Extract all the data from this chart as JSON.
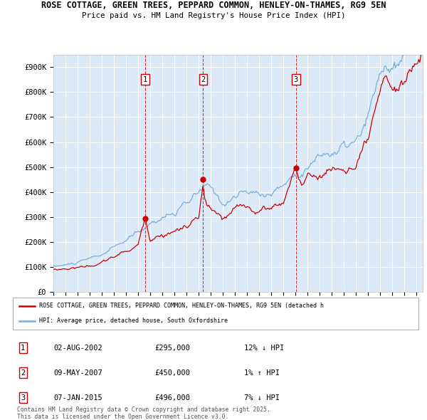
{
  "title_line1": "ROSE COTTAGE, GREEN TREES, PEPPARD COMMON, HENLEY-ON-THAMES, RG9 5EN",
  "title_line2": "Price paid vs. HM Land Registry's House Price Index (HPI)",
  "background_color": "#ffffff",
  "plot_bg_color": "#dce9f7",
  "grid_color": "#ffffff",
  "red_line_color": "#cc0000",
  "blue_line_color": "#7aaddb",
  "sale_marker_color": "#cc0000",
  "vline_color": "#cc0000",
  "ylim_min": 0,
  "ylim_max": 950000,
  "yticks": [
    0,
    100000,
    200000,
    300000,
    400000,
    500000,
    600000,
    700000,
    800000,
    900000
  ],
  "ytick_labels": [
    "£0",
    "£100K",
    "£200K",
    "£300K",
    "£400K",
    "£500K",
    "£600K",
    "£700K",
    "£800K",
    "£900K"
  ],
  "xmin": 1995.0,
  "xmax": 2025.5,
  "xticks": [
    1995,
    1996,
    1997,
    1998,
    1999,
    2000,
    2001,
    2002,
    2003,
    2004,
    2005,
    2006,
    2007,
    2008,
    2009,
    2010,
    2011,
    2012,
    2013,
    2014,
    2015,
    2016,
    2017,
    2018,
    2019,
    2020,
    2021,
    2022,
    2023,
    2024,
    2025
  ],
  "sales": [
    {
      "num": 1,
      "date": "02-AUG-2002",
      "price": 295000,
      "year": 2002.58,
      "pct": "12%",
      "dir": "↓"
    },
    {
      "num": 2,
      "date": "09-MAY-2007",
      "price": 450000,
      "year": 2007.36,
      "pct": "1%",
      "dir": "↑"
    },
    {
      "num": 3,
      "date": "07-JAN-2015",
      "price": 496000,
      "year": 2015.03,
      "pct": "7%",
      "dir": "↓"
    }
  ],
  "legend_red_label": "ROSE COTTAGE, GREEN TREES, PEPPARD COMMON, HENLEY-ON-THAMES, RG9 5EN (detached h",
  "legend_blue_label": "HPI: Average price, detached house, South Oxfordshire",
  "footnote": "Contains HM Land Registry data © Crown copyright and database right 2025.\nThis data is licensed under the Open Government Licence v3.0."
}
